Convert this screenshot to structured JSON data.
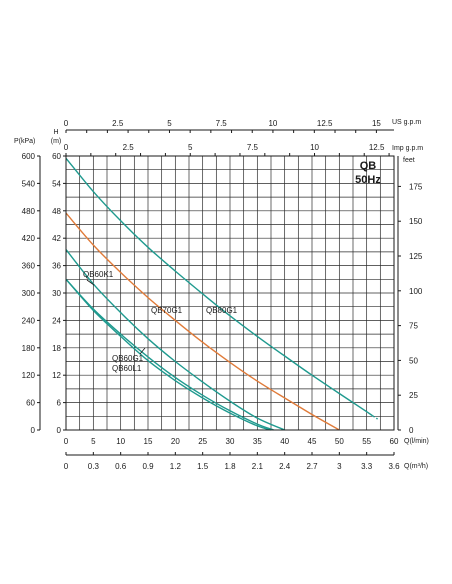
{
  "chart_data": {
    "type": "line",
    "title": "QB",
    "subtitle": "50Hz",
    "grid": true,
    "xlim": [
      0,
      60
    ],
    "ylim": [
      0,
      60
    ],
    "axes": {
      "bottom_primary": {
        "label": "Q(l/min)",
        "ticks": [
          "0",
          "5",
          "10",
          "15",
          "20",
          "25",
          "30",
          "35",
          "40",
          "45",
          "50",
          "55",
          "60"
        ]
      },
      "bottom_secondary": {
        "label": "Q(m³/h)",
        "ticks": [
          "0",
          "0.3",
          "0.6",
          "0.9",
          "1.2",
          "1.5",
          "1.8",
          "2.1",
          "2.4",
          "2.7",
          "3",
          "3.3",
          "3.6"
        ]
      },
      "top_us": {
        "label": "US  g.p.m",
        "ticks": [
          "0",
          "2.5",
          "5",
          "7.5",
          "10",
          "12.5",
          "15"
        ]
      },
      "top_imp": {
        "label": "Imp  g.p.m",
        "ticks": [
          "0",
          "2.5",
          "5",
          "7.5",
          "10",
          "12.5"
        ]
      },
      "left_head": {
        "label_line1": "H",
        "label_line2": "(m)",
        "ticks": [
          "0",
          "6",
          "12",
          "18",
          "24",
          "30",
          "36",
          "42",
          "48",
          "54",
          "60"
        ]
      },
      "left_pressure": {
        "label": "P(kPa)",
        "ticks": [
          "0",
          "60",
          "120",
          "180",
          "240",
          "300",
          "360",
          "420",
          "480",
          "540",
          "600"
        ]
      },
      "right_feet": {
        "label": "feet",
        "ticks": [
          "0",
          "25",
          "50",
          "75",
          "100",
          "125",
          "150",
          "175"
        ]
      }
    },
    "series": [
      {
        "name": "QB80G1",
        "color": "#1f9a8f",
        "x": [
          0,
          5,
          10,
          15,
          20,
          25,
          30,
          35,
          40,
          45,
          50,
          55,
          57
        ],
        "y": [
          59.5,
          52.2,
          45.8,
          40,
          34.8,
          29.8,
          25,
          20.5,
          16.2,
          12,
          8,
          4,
          2.4
        ],
        "dashed_from_x": 56
      },
      {
        "name": "QB70G1",
        "color": "#e07b39",
        "x": [
          0,
          5,
          10,
          15,
          20,
          25,
          30,
          35,
          40,
          45,
          50
        ],
        "y": [
          47.5,
          40.5,
          34.5,
          29,
          24,
          19.2,
          14.8,
          10.7,
          7,
          3.4,
          0
        ]
      },
      {
        "name": "QB60K1",
        "color": "#1f9a8f",
        "x": [
          0,
          5,
          10,
          15,
          20,
          25,
          30,
          35,
          40
        ],
        "y": [
          39.5,
          32,
          25.7,
          20,
          15,
          10.5,
          6.3,
          2.6,
          0
        ]
      },
      {
        "name": "QB60G1",
        "color": "#1f9a8f",
        "x": [
          0,
          5,
          10,
          15,
          20,
          25,
          30,
          35,
          38
        ],
        "y": [
          33,
          26.5,
          21,
          16,
          11.5,
          7.6,
          4.2,
          1.3,
          0
        ]
      },
      {
        "name": "QB60L1",
        "color": "#1f9a8f",
        "x": [
          0,
          5,
          10,
          15,
          20,
          25,
          30,
          35,
          37.5
        ],
        "y": [
          33,
          26.2,
          20.5,
          15.2,
          10.8,
          7,
          3.7,
          0.9,
          0
        ]
      }
    ]
  }
}
